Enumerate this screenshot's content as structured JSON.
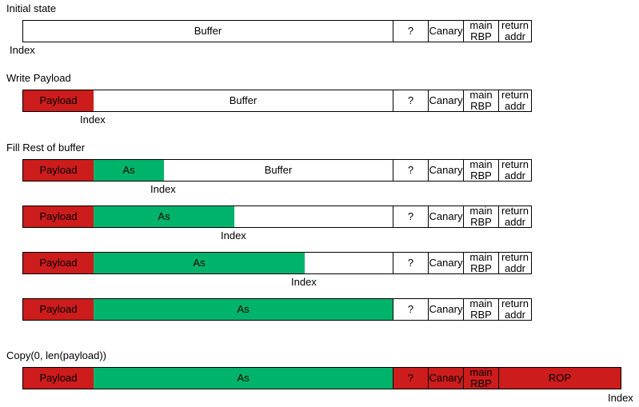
{
  "colors": {
    "payload": "#cc1c1c",
    "as": "#00b36b",
    "empty": "#ffffff",
    "rop": "#cc1c1c"
  },
  "sections": {
    "initial": "Initial state",
    "write": "Write Payload",
    "fill": "Fill Rest of buffer",
    "copy": "Copy(0, len(payload))"
  },
  "cells": {
    "buffer": "Buffer",
    "payload": "Payload",
    "as": "As",
    "unknown": "?",
    "canary": "Canary",
    "main_line1": "main",
    "main_line2": "RBP",
    "ret_line1": "return",
    "ret_line2": "addr",
    "rop": "ROP"
  },
  "index_label": "Index"
}
